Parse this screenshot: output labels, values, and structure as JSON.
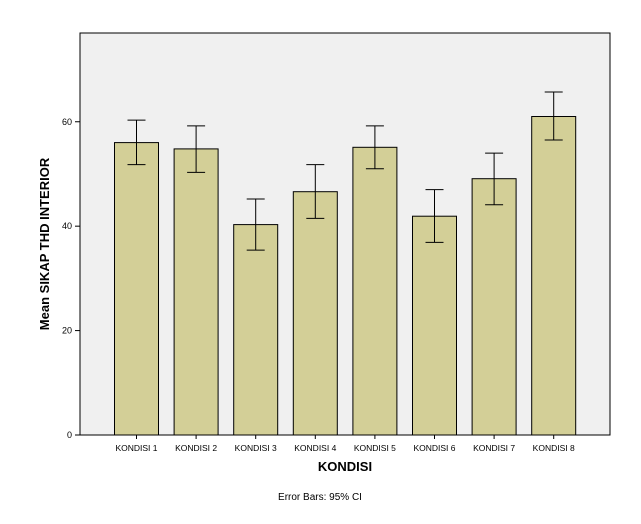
{
  "chart_data": {
    "type": "bar",
    "categories": [
      "KONDISI 1",
      "KONDISI 2",
      "KONDISI 3",
      "KONDISI 4",
      "KONDISI 5",
      "KONDISI 6",
      "KONDISI 7",
      "KONDISI 8"
    ],
    "values": [
      56.0,
      54.8,
      40.3,
      46.6,
      55.1,
      41.9,
      49.1,
      61.0
    ],
    "error_low": [
      51.8,
      50.3,
      35.4,
      41.5,
      51.0,
      36.9,
      44.1,
      56.5
    ],
    "error_high": [
      60.3,
      59.2,
      45.2,
      51.8,
      59.2,
      47.0,
      54.0,
      65.7
    ],
    "xlabel": "KONDISI",
    "ylabel": "Mean SIKAP THD INTERIOR",
    "ylim": [
      0,
      77
    ],
    "yticks": [
      0,
      20,
      40,
      60
    ],
    "footnote": "Error Bars: 95% CI",
    "grid": false,
    "colors": {
      "bar_fill": "#d3cf97",
      "bar_stroke": "#000000",
      "plot_background": "#f0f0f0",
      "error_bar": "#000000"
    }
  }
}
